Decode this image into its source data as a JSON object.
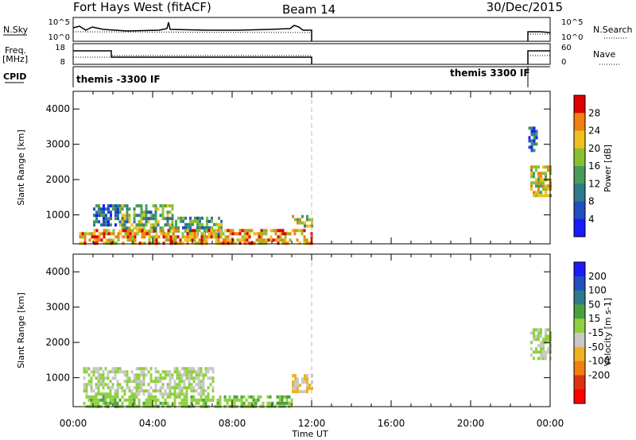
{
  "header": {
    "title": "Fort Hays West (fitACF)",
    "beam": "Beam 14",
    "date": "30/Dec/2015"
  },
  "strips": {
    "nsky_label": "N.Sky",
    "nsearch_label": "N.Search",
    "freq_label": "Freq.",
    "freq_unit": "[MHz]",
    "nave_label": "Nave",
    "cpid_label": "CPID",
    "nsky_ticks": [
      "10^5",
      "10^0"
    ],
    "nsearch_ticks": [
      "10^5",
      "10^0"
    ],
    "freq_ticks": [
      "18",
      "8"
    ],
    "nave_ticks": [
      "60",
      "0"
    ],
    "cpid_left": "themis -3300 IF",
    "cpid_right": "themis 3300 IF"
  },
  "axes": {
    "xlabel": "Time UT",
    "x_ticks": [
      "00:00",
      "04:00",
      "08:00",
      "12:00",
      "16:00",
      "20:00",
      "00:00"
    ],
    "ylabel": "Slant Range [km]",
    "y_ticks": [
      "1000",
      "2000",
      "3000",
      "4000"
    ]
  },
  "colorbars": {
    "power": {
      "label": "Power [dB]",
      "ticks": [
        "4",
        "8",
        "12",
        "16",
        "20",
        "24",
        "28"
      ],
      "colors": [
        "#1a1aff",
        "#2050c0",
        "#2e7a8a",
        "#4a9a5a",
        "#8ac030",
        "#f0c020",
        "#f08010",
        "#e00000"
      ]
    },
    "velocity": {
      "label": "Velocity [m s-1]",
      "ticks": [
        "200",
        "100",
        "50",
        "15",
        "-15",
        "-50",
        "-100",
        "-200"
      ],
      "colors": [
        "#1a1aff",
        "#2050c0",
        "#2e7a8a",
        "#4aa040",
        "#90d040",
        "#c8c8c8",
        "#f0b020",
        "#f08010",
        "#e03010",
        "#ff0000"
      ]
    }
  },
  "chart_data": [
    {
      "type": "heatmap",
      "name": "Power",
      "x_range_hours": [
        0,
        24
      ],
      "y_range_km": [
        180,
        4500
      ],
      "clim": [
        0,
        30
      ],
      "regions": [
        {
          "t": [
            1.0,
            2.3
          ],
          "r": [
            700,
            1300
          ],
          "v": 8
        },
        {
          "t": [
            2.3,
            5.0
          ],
          "r": [
            550,
            1300
          ],
          "v": 14
        },
        {
          "t": [
            5.0,
            7.5
          ],
          "r": [
            450,
            950
          ],
          "v": 12
        },
        {
          "t": [
            0.3,
            12.0
          ],
          "r": [
            200,
            600
          ],
          "v": 22
        },
        {
          "t": [
            11.0,
            12.0
          ],
          "r": [
            700,
            1000
          ],
          "v": 18
        },
        {
          "t": [
            23.0,
            24.0
          ],
          "r": [
            1500,
            2400
          ],
          "v": 18
        },
        {
          "t": [
            22.9,
            23.3
          ],
          "r": [
            2800,
            3500
          ],
          "v": 6
        }
      ]
    },
    {
      "type": "heatmap",
      "name": "Velocity",
      "x_range_hours": [
        0,
        24
      ],
      "y_range_km": [
        180,
        4500
      ],
      "clim": [
        -200,
        200
      ],
      "regions": [
        {
          "t": [
            0.5,
            7.0
          ],
          "r": [
            550,
            1300
          ],
          "v": 0
        },
        {
          "t": [
            0.5,
            11.0
          ],
          "r": [
            200,
            500
          ],
          "v": 30
        },
        {
          "t": [
            11.0,
            12.0
          ],
          "r": [
            600,
            1100
          ],
          "v": -40
        },
        {
          "t": [
            23.0,
            24.0
          ],
          "r": [
            1500,
            2400
          ],
          "v": 0
        }
      ]
    }
  ]
}
